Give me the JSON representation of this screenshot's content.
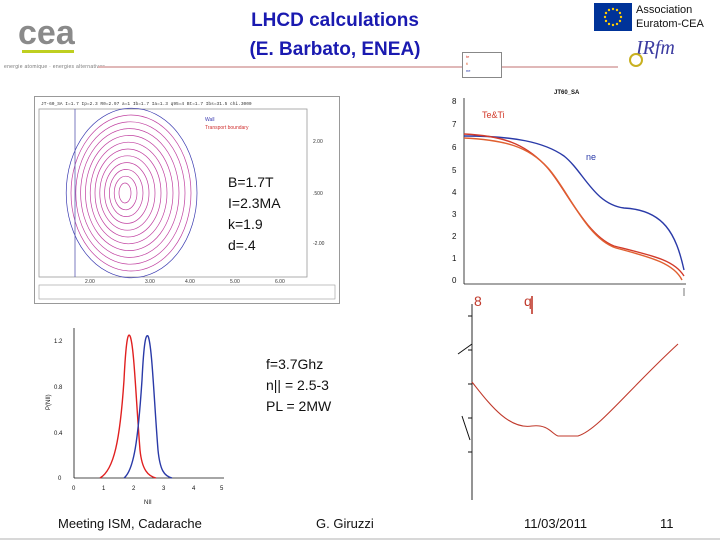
{
  "header": {
    "title_line1": "LHCD calculations",
    "title_line2": "(E. Barbato, ENEA)",
    "association_line1": "Association",
    "association_line2": "Euratom-CEA",
    "cea_caption": "energie atomique · energies alternatives",
    "irfm_logo": "IRfm"
  },
  "equilibrium": {
    "header_text": "JT-60_SA  I=1.7  Ip=2.3  R0=2.97  a=1  Ib=1.7  Ia=1.3  q95=4  Bt=1.7  Ibs=31.5  chi.3000",
    "legend_wall": "Wall",
    "legend_boundary": "Transport boundary",
    "x_ticks": [
      "2.00",
      "3.00",
      "4.00",
      "5.00",
      "6.00"
    ],
    "y_ticks": [
      "2.00",
      ".500",
      "-2.00"
    ],
    "params": [
      "B=1.7T",
      "I=2.3MA",
      "k=1.9",
      "d=.4"
    ]
  },
  "profiles": {
    "title": "JT60_SA",
    "legend": [
      "te",
      "ti",
      "ne"
    ],
    "label_teti": "Te&Ti",
    "label_ne": "ne",
    "y_ticks": [
      "8",
      "7",
      "6",
      "5",
      "4",
      "3",
      "2",
      "1",
      "0"
    ],
    "side_label": "8",
    "q_label": "q",
    "colors": {
      "te": "#d23a2a",
      "ti": "#e06030",
      "ne": "#2a3aa8"
    }
  },
  "deposition": {
    "x_label": "NII",
    "y_label": "P(NII)",
    "x_ticks": [
      "0",
      "1",
      "2",
      "3",
      "4",
      "5"
    ],
    "y_ticks": [
      "0",
      "0.4",
      "0.8",
      "1.2"
    ],
    "colors": {
      "red": "#e02020",
      "blue": "#2a3aa8"
    }
  },
  "lh_params": [
    "f=3.7Ghz",
    "n|| = 2.5-3",
    "PL   = 2MW"
  ],
  "footer": {
    "meeting": "Meeting ISM, Cadarache",
    "author": "G. Giruzzi",
    "date": "11/03/2011",
    "page": "11"
  }
}
